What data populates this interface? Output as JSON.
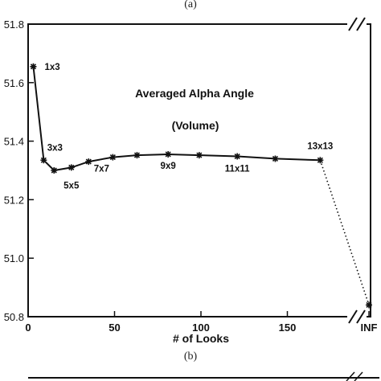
{
  "top_caption": "(a)",
  "bottom_caption": "(b)",
  "chart_data": {
    "type": "line",
    "title": "Averaged Alpha Angle",
    "subtitle": "(Volume)",
    "xlabel": "# of Looks",
    "ylabel": "",
    "ylim": [
      50.8,
      51.8
    ],
    "xlim": [
      0,
      180
    ],
    "x_ticks": [
      "0",
      "50",
      "100",
      "150",
      "INF"
    ],
    "y_ticks": [
      "50.8",
      "51.0",
      "51.2",
      "51.4",
      "51.6",
      "51.8"
    ],
    "axis_break": "//",
    "line_color": "#111111",
    "series": [
      {
        "style": "solid",
        "points": [
          {
            "x": 3,
            "y": 51.655,
            "label": "1x3"
          },
          {
            "x": 9,
            "y": 51.335,
            "label": "3x3"
          },
          {
            "x": 15,
            "y": 51.3,
            "label": ""
          },
          {
            "x": 25,
            "y": 51.31,
            "label": "5x5"
          },
          {
            "x": 35,
            "y": 51.33,
            "label": ""
          },
          {
            "x": 49,
            "y": 51.345,
            "label": "7x7"
          },
          {
            "x": 63,
            "y": 51.352,
            "label": ""
          },
          {
            "x": 81,
            "y": 51.355,
            "label": "9x9"
          },
          {
            "x": 99,
            "y": 51.352,
            "label": ""
          },
          {
            "x": 121,
            "y": 51.348,
            "label": "11x11"
          },
          {
            "x": 143,
            "y": 51.34,
            "label": ""
          },
          {
            "x": 169,
            "y": 51.335,
            "label": "13x13"
          }
        ]
      },
      {
        "style": "dotted",
        "points": [
          {
            "x": 169,
            "y": 51.335
          },
          {
            "x": "INF",
            "y": 50.84
          }
        ]
      }
    ]
  }
}
